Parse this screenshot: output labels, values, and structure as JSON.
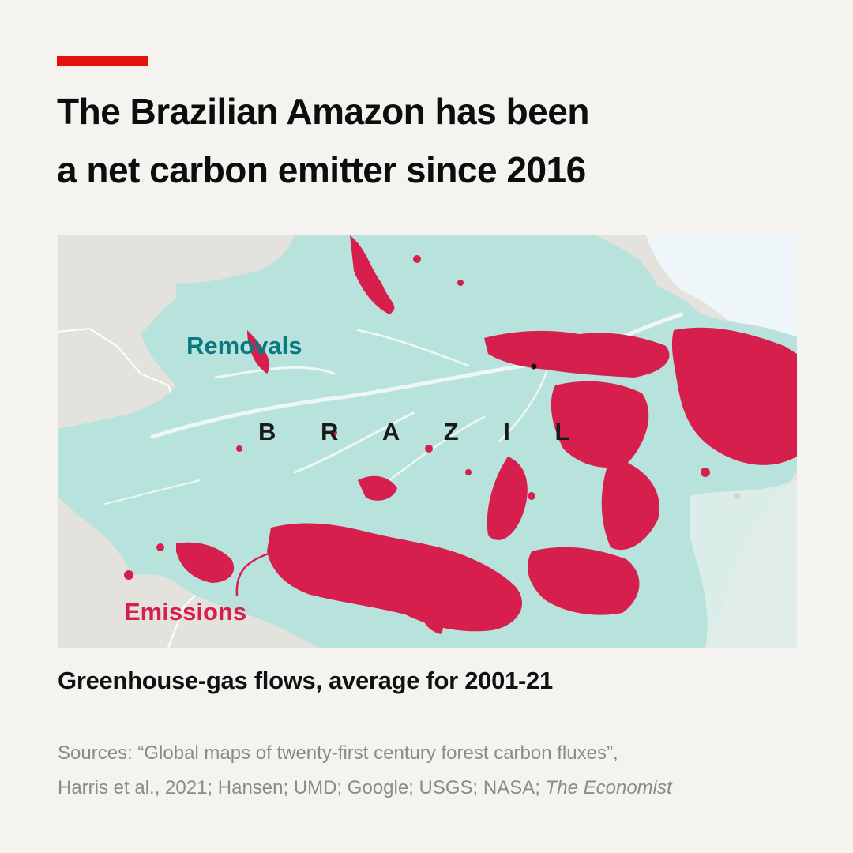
{
  "headline": {
    "line1": "The Brazilian Amazon has been",
    "line2": "a net carbon emitter since 2016"
  },
  "map": {
    "country_label": "B R A Z I L",
    "removals_label": "Removals",
    "emissions_label": "Emissions",
    "colors": {
      "removals": "#b8e3dc",
      "removals_text": "#0b7a80",
      "emissions": "#d61f4d",
      "emissions_text": "#d61f4d",
      "land_outside": "#e4e2dc",
      "ocean": "#eef6f9",
      "borders": "#ffffff"
    }
  },
  "subtitle": "Greenhouse-gas flows, average for 2001-21",
  "source": {
    "line1": "Sources:  “Global maps of twenty-first century forest carbon fluxes”,",
    "line2_plain": "Harris et al., 2021; Hansen; UMD; Google; USGS; NASA;",
    "line2_italic": "The Economist"
  }
}
